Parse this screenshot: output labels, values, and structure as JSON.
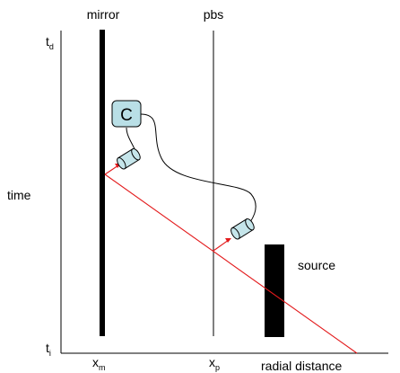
{
  "labels": {
    "mirror": "mirror",
    "pbs": "pbs",
    "time_axis": "time",
    "distance_axis": "radial distance",
    "source": "source",
    "counter": "C"
  },
  "ticks": {
    "t_final": {
      "base": "t",
      "sub": "d"
    },
    "t_initial": {
      "base": "t",
      "sub": "i"
    },
    "x_mirror": {
      "base": "x",
      "sub": "m"
    },
    "x_pbs": {
      "base": "x",
      "sub": "p"
    }
  },
  "colors": {
    "beam": "#e31a1c",
    "detector_fill": "#c5e5ea",
    "counter_fill": "#b9dfe6",
    "outline": "#000000"
  }
}
